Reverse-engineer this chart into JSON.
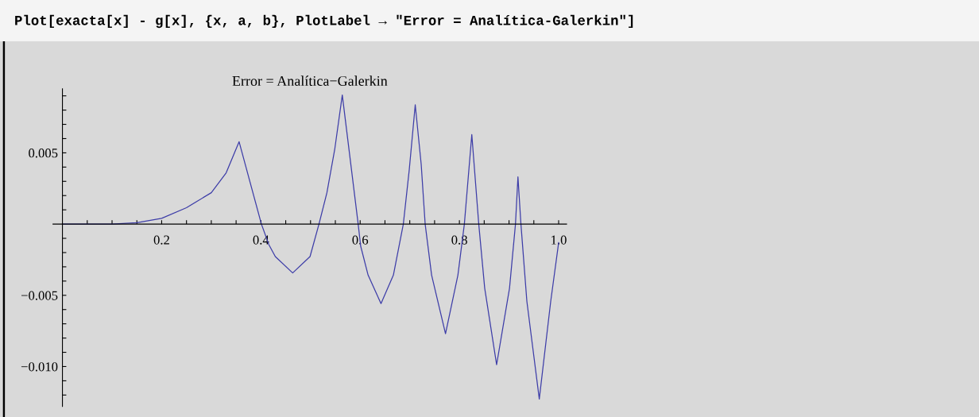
{
  "chart_data": {
    "type": "line",
    "title": "Error = Analítica−Galerkin",
    "annotations": [
      "Plot[exacta[x] - g[x], {x, a, b}, PlotLabel → \"Error = Analítica-Galerkin\"]"
    ],
    "series": [
      {
        "color": "#3d3da8",
        "x": [
          0,
          0.05,
          0.1,
          0.15,
          0.2,
          0.25,
          0.3,
          0.33,
          0.356,
          0.401,
          0.416,
          0.429,
          0.464,
          0.499,
          0.517,
          0.533,
          0.549,
          0.564,
          0.596,
          0.601,
          0.616,
          0.642,
          0.667,
          0.687,
          0.699,
          0.711,
          0.723,
          0.731,
          0.744,
          0.772,
          0.797,
          0.81,
          0.825,
          0.839,
          0.851,
          0.875,
          0.901,
          0.913,
          0.918,
          0.924,
          0.936,
          0.961,
          0.984,
          1.0
        ],
        "values": [
          0,
          0,
          0,
          0.0001,
          0.0004,
          0.00115,
          0.0022,
          0.0036,
          0.00578,
          0,
          -0.00144,
          -0.00228,
          -0.00343,
          -0.00228,
          0,
          0.0022,
          0.0053,
          0.00906,
          0,
          -0.00154,
          -0.00358,
          -0.00558,
          -0.00358,
          0,
          0.00383,
          0.00837,
          0.0042,
          0,
          -0.00358,
          -0.00769,
          -0.00358,
          0,
          0.00628,
          0,
          -0.0045,
          -0.00987,
          -0.0045,
          0,
          0.00331,
          0,
          -0.00543,
          -0.01228,
          -0.00543,
          -0.0013
        ]
      }
    ],
    "xlim": [
      -0.019,
      1.016
    ],
    "ylim": [
      -0.0128,
      0.0095
    ],
    "xticks": [
      {
        "value": 0.05,
        "label": null
      },
      {
        "value": 0.1,
        "label": null
      },
      {
        "value": 0.15,
        "label": null
      },
      0.2,
      {
        "value": 0.25,
        "label": null
      },
      {
        "value": 0.3,
        "label": null
      },
      {
        "value": 0.35,
        "label": null
      },
      0.4,
      {
        "value": 0.45,
        "label": null
      },
      {
        "value": 0.5,
        "label": null
      },
      {
        "value": 0.55,
        "label": null
      },
      0.6,
      {
        "value": 0.65,
        "label": null
      },
      {
        "value": 0.7,
        "label": null
      },
      {
        "value": 0.75,
        "label": null
      },
      0.8,
      {
        "value": 0.85,
        "label": null
      },
      {
        "value": 0.9,
        "label": null
      },
      {
        "value": 0.95,
        "label": null
      },
      {
        "value": 1.0,
        "label": "1.0"
      }
    ],
    "yticks": [
      {
        "value": -0.012,
        "label": null
      },
      {
        "value": -0.011,
        "label": null
      },
      {
        "value": -0.01,
        "label": "−0.010"
      },
      {
        "value": -0.009,
        "label": null
      },
      {
        "value": -0.008,
        "label": null
      },
      {
        "value": -0.007,
        "label": null
      },
      {
        "value": -0.006,
        "label": null
      },
      {
        "value": -0.005,
        "label": "−0.005"
      },
      {
        "value": -0.004,
        "label": null
      },
      {
        "value": -0.003,
        "label": null
      },
      {
        "value": -0.002,
        "label": null
      },
      {
        "value": -0.001,
        "label": null
      },
      {
        "value": 0.001,
        "label": null
      },
      {
        "value": 0.002,
        "label": null
      },
      {
        "value": 0.003,
        "label": null
      },
      {
        "value": 0.004,
        "label": null
      },
      0.005,
      {
        "value": 0.006,
        "label": null
      },
      {
        "value": 0.007,
        "label": null
      },
      {
        "value": 0.008,
        "label": null
      },
      {
        "value": 0.009,
        "label": null
      }
    ],
    "grid": false
  }
}
